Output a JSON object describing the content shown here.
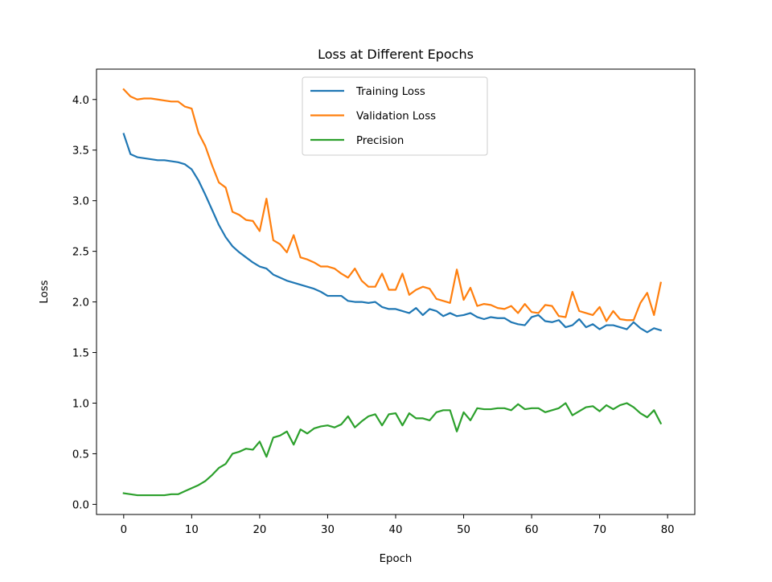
{
  "chart_data": {
    "type": "line",
    "title": "Loss at Different Epochs",
    "xlabel": "Epoch",
    "ylabel": "Loss",
    "xlim": [
      -4,
      84
    ],
    "ylim": [
      -0.1,
      4.3
    ],
    "xticks": [
      "0",
      "10",
      "20",
      "30",
      "40",
      "50",
      "60",
      "70",
      "80"
    ],
    "xtick_values": [
      0,
      10,
      20,
      30,
      40,
      50,
      60,
      70,
      80
    ],
    "yticks": [
      "0.0",
      "0.5",
      "1.0",
      "1.5",
      "2.0",
      "2.5",
      "3.0",
      "3.5",
      "4.0"
    ],
    "ytick_values": [
      0,
      0.5,
      1,
      1.5,
      2,
      2.5,
      3,
      3.5,
      4
    ],
    "grid": false,
    "legend_position": "top-center",
    "x": [
      0,
      1,
      2,
      3,
      4,
      5,
      6,
      7,
      8,
      9,
      10,
      11,
      12,
      13,
      14,
      15,
      16,
      17,
      18,
      19,
      20,
      21,
      22,
      23,
      24,
      25,
      26,
      27,
      28,
      29,
      30,
      31,
      32,
      33,
      34,
      35,
      36,
      37,
      38,
      39,
      40,
      41,
      42,
      43,
      44,
      45,
      46,
      47,
      48,
      49,
      50,
      51,
      52,
      53,
      54,
      55,
      56,
      57,
      58,
      59,
      60,
      61,
      62,
      63,
      64,
      65,
      66,
      67,
      68,
      69,
      70,
      71,
      72,
      73,
      74,
      75,
      76,
      77,
      78,
      79
    ],
    "series": [
      {
        "name": "Training Loss",
        "color": "#1f77b4",
        "values": [
          3.66,
          3.46,
          3.43,
          3.42,
          3.41,
          3.4,
          3.4,
          3.39,
          3.38,
          3.36,
          3.31,
          3.2,
          3.06,
          2.91,
          2.76,
          2.64,
          2.55,
          2.49,
          2.44,
          2.39,
          2.35,
          2.33,
          2.27,
          2.24,
          2.21,
          2.19,
          2.17,
          2.15,
          2.13,
          2.1,
          2.06,
          2.06,
          2.06,
          2.01,
          2.0,
          2.0,
          1.99,
          2.0,
          1.95,
          1.93,
          1.93,
          1.91,
          1.89,
          1.94,
          1.87,
          1.93,
          1.91,
          1.86,
          1.89,
          1.86,
          1.87,
          1.89,
          1.85,
          1.83,
          1.85,
          1.84,
          1.84,
          1.8,
          1.78,
          1.77,
          1.85,
          1.87,
          1.81,
          1.8,
          1.82,
          1.75,
          1.77,
          1.83,
          1.75,
          1.78,
          1.73,
          1.77,
          1.77,
          1.75,
          1.73,
          1.8,
          1.74,
          1.7,
          1.74,
          1.72
        ]
      },
      {
        "name": "Validation Loss",
        "color": "#ff7f0e",
        "values": [
          4.1,
          4.03,
          4.0,
          4.01,
          4.01,
          4.0,
          3.99,
          3.98,
          3.98,
          3.93,
          3.91,
          3.67,
          3.54,
          3.35,
          3.18,
          3.13,
          2.89,
          2.86,
          2.81,
          2.8,
          2.7,
          3.02,
          2.61,
          2.57,
          2.49,
          2.66,
          2.44,
          2.42,
          2.39,
          2.35,
          2.35,
          2.33,
          2.28,
          2.24,
          2.33,
          2.21,
          2.15,
          2.15,
          2.28,
          2.12,
          2.12,
          2.28,
          2.07,
          2.12,
          2.15,
          2.13,
          2.03,
          2.01,
          1.99,
          2.32,
          2.02,
          2.14,
          1.96,
          1.98,
          1.97,
          1.94,
          1.93,
          1.96,
          1.89,
          1.98,
          1.9,
          1.89,
          1.97,
          1.96,
          1.86,
          1.85,
          2.1,
          1.91,
          1.89,
          1.87,
          1.95,
          1.81,
          1.91,
          1.83,
          1.82,
          1.82,
          1.99,
          2.09,
          1.87,
          2.19
        ]
      },
      {
        "name": "Precision",
        "color": "#2ca02c",
        "values": [
          0.11,
          0.1,
          0.09,
          0.09,
          0.09,
          0.09,
          0.09,
          0.1,
          0.1,
          0.13,
          0.16,
          0.19,
          0.23,
          0.29,
          0.36,
          0.4,
          0.5,
          0.52,
          0.55,
          0.54,
          0.62,
          0.47,
          0.66,
          0.68,
          0.72,
          0.59,
          0.74,
          0.7,
          0.75,
          0.77,
          0.78,
          0.76,
          0.79,
          0.87,
          0.76,
          0.82,
          0.87,
          0.89,
          0.78,
          0.89,
          0.9,
          0.78,
          0.9,
          0.85,
          0.85,
          0.83,
          0.91,
          0.93,
          0.93,
          0.72,
          0.91,
          0.83,
          0.95,
          0.94,
          0.94,
          0.95,
          0.95,
          0.93,
          0.99,
          0.94,
          0.95,
          0.95,
          0.91,
          0.93,
          0.95,
          1.0,
          0.88,
          0.92,
          0.96,
          0.97,
          0.92,
          0.98,
          0.94,
          0.98,
          1.0,
          0.96,
          0.9,
          0.86,
          0.93,
          0.8
        ]
      }
    ]
  }
}
